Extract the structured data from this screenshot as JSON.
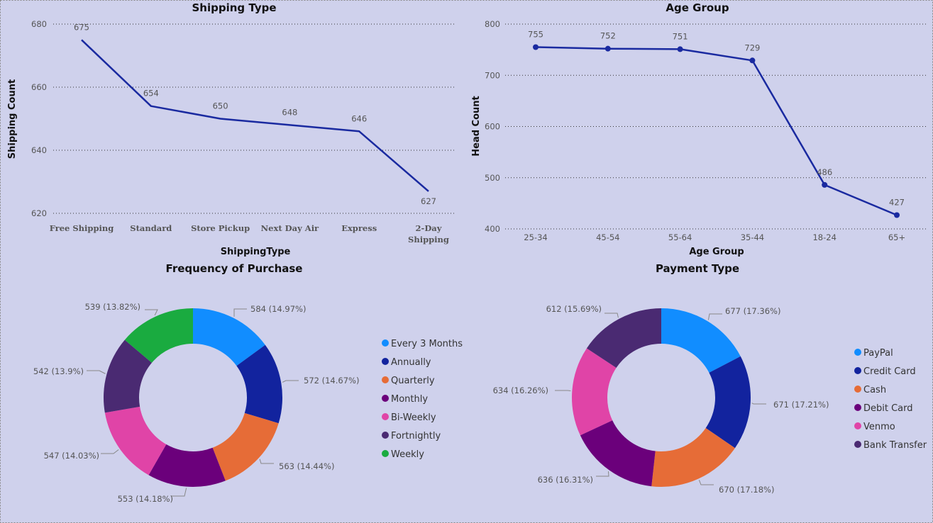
{
  "colors": {
    "background": "#cfd1ec",
    "line": "#1a2aa0",
    "gridline": "#333333"
  },
  "chart_data": [
    {
      "type": "line",
      "title": "Shipping Type",
      "xlabel": "ShippingType",
      "ylabel": "Shipping Count",
      "categories": [
        "Free Shipping",
        "Standard",
        "Store Pickup",
        "Next Day Air",
        "Express",
        "2-Day Shipping"
      ],
      "values": [
        675,
        654,
        650,
        648,
        646,
        627
      ],
      "ylim": [
        620,
        680
      ],
      "yticks": [
        620,
        640,
        660,
        680
      ],
      "markers": false,
      "grid": true
    },
    {
      "type": "line",
      "title": "Age Group",
      "xlabel": "Age Group",
      "ylabel": "Head Count",
      "categories": [
        "25-34",
        "45-54",
        "55-64",
        "35-44",
        "18-24",
        "65+"
      ],
      "values": [
        755,
        752,
        751,
        729,
        486,
        427
      ],
      "ylim": [
        400,
        800
      ],
      "yticks": [
        400,
        500,
        600,
        700,
        800
      ],
      "markers": true,
      "grid": true
    },
    {
      "type": "pie",
      "donut": true,
      "title": "Frequency of Purchase",
      "legend": "right",
      "slices": [
        {
          "name": "Every 3 Months",
          "value": 584,
          "label": "584 (14.97%)",
          "color": "#118dff"
        },
        {
          "name": "Annually",
          "value": 572,
          "label": "572 (14.67%)",
          "color": "#12239e"
        },
        {
          "name": "Quarterly",
          "value": 563,
          "label": "563 (14.44%)",
          "color": "#e66c37"
        },
        {
          "name": "Monthly",
          "value": 553,
          "label": "553 (14.18%)",
          "color": "#6b007b"
        },
        {
          "name": "Bi-Weekly",
          "value": 547,
          "label": "547 (14.03%)",
          "color": "#e044a7"
        },
        {
          "name": "Fortnightly",
          "value": 542,
          "label": "542 (13.9%)",
          "color": "#4a2a72"
        },
        {
          "name": "Weekly",
          "value": 539,
          "label": "539 (13.82%)",
          "color": "#1aab40"
        }
      ]
    },
    {
      "type": "pie",
      "donut": true,
      "title": "Payment Type",
      "legend": "right",
      "slices": [
        {
          "name": "PayPal",
          "value": 677,
          "label": "677 (17.36%)",
          "color": "#118dff"
        },
        {
          "name": "Credit Card",
          "value": 671,
          "label": "671 (17.21%)",
          "color": "#12239e"
        },
        {
          "name": "Cash",
          "value": 670,
          "label": "670 (17.18%)",
          "color": "#e66c37"
        },
        {
          "name": "Debit Card",
          "value": 636,
          "label": "636 (16.31%)",
          "color": "#6b007b"
        },
        {
          "name": "Venmo",
          "value": 634,
          "label": "634 (16.26%)",
          "color": "#e044a7"
        },
        {
          "name": "Bank Transfer",
          "value": 612,
          "label": "612 (15.69%)",
          "color": "#4a2a72"
        }
      ]
    }
  ]
}
